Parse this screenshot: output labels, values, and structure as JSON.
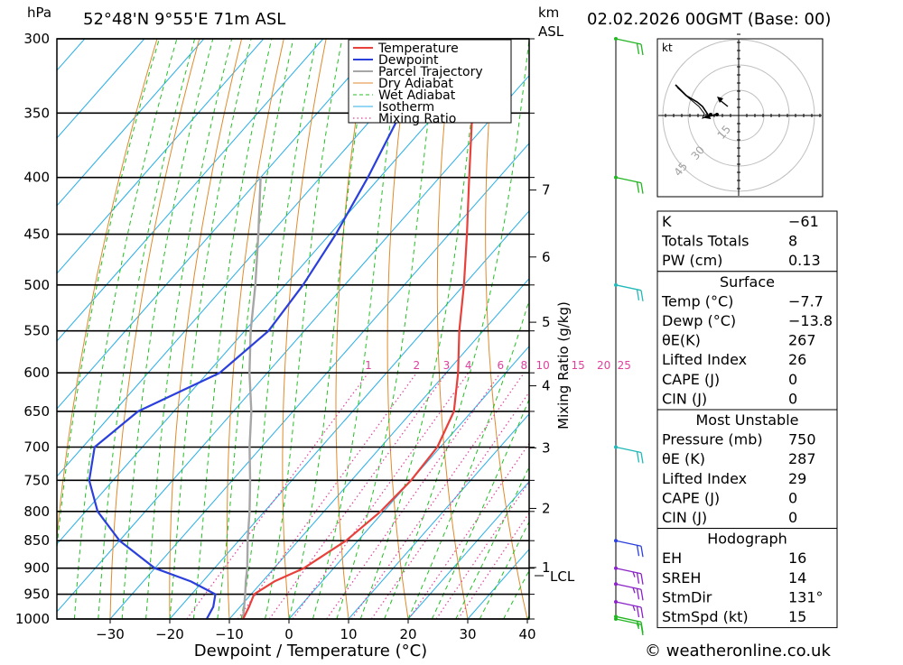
{
  "header": {
    "pressure_unit": "hPa",
    "location": "52°48'N  9°55'E  71m  ASL",
    "height_unit_top": "km",
    "height_unit_bottom": "ASL",
    "datetime": "02.02.2026  00GMT  (Base: 00)"
  },
  "footer": {
    "credit": "© weatheronline.co.uk"
  },
  "colors": {
    "temperature": "#e8403a",
    "dewpoint": "#2a3fdc",
    "parcel": "#a6a6a6",
    "dry_adiabat": "#e08a2c",
    "wet_adiabat": "#22c022",
    "isotherm": "#28aee8",
    "mixing_ratio": "#e0409c",
    "barb_green": "#22b522",
    "barb_cyan": "#20b8b8",
    "barb_blue": "#2a3fdc",
    "barb_purple": "#8a22c8"
  },
  "chart_data": {
    "type": "line",
    "xlabel": "Dewpoint / Temperature (°C)",
    "ylabel": "hPa",
    "xlim": [
      -40,
      40
    ],
    "ylim": [
      1000,
      300
    ],
    "x_ticks": [
      "-30",
      "-20",
      "-10",
      "0",
      "10",
      "20",
      "30",
      "40"
    ],
    "y_ticks": [
      "300",
      "350",
      "400",
      "450",
      "500",
      "550",
      "600",
      "650",
      "700",
      "750",
      "800",
      "850",
      "900",
      "950",
      "1000"
    ],
    "km_ticks": [
      "1",
      "2",
      "3",
      "4",
      "5",
      "6",
      "7"
    ],
    "lcl_label": "LCL",
    "mixing_ratio_label": "Mixing Ratio (g/kg)",
    "mixing_ratio_values": [
      "1",
      "2",
      "3",
      "4",
      "6",
      "8",
      "10",
      "15",
      "20",
      "25"
    ],
    "legend": [
      "Temperature",
      "Dewpoint",
      "Parcel Trajectory",
      "Dry Adiabat",
      "Wet Adiabat",
      "Isotherm",
      "Mixing Ratio"
    ],
    "series": [
      {
        "name": "Temperature",
        "points": [
          [
            1000,
            -7.7
          ],
          [
            975,
            -8.5
          ],
          [
            950,
            -9.5
          ],
          [
            925,
            -8
          ],
          [
            900,
            -5
          ],
          [
            850,
            -2
          ],
          [
            800,
            -0.5
          ],
          [
            750,
            0
          ],
          [
            700,
            -0.5
          ],
          [
            650,
            -3
          ],
          [
            600,
            -8
          ],
          [
            550,
            -14
          ],
          [
            500,
            -20
          ],
          [
            450,
            -27
          ],
          [
            400,
            -35
          ],
          [
            350,
            -44
          ],
          [
            300,
            -53
          ]
        ]
      },
      {
        "name": "Dewpoint",
        "points": [
          [
            1000,
            -13.8
          ],
          [
            975,
            -14.5
          ],
          [
            950,
            -16
          ],
          [
            925,
            -22
          ],
          [
            900,
            -30
          ],
          [
            850,
            -40
          ],
          [
            800,
            -48
          ],
          [
            750,
            -54
          ],
          [
            700,
            -58
          ],
          [
            650,
            -56
          ],
          [
            600,
            -48
          ],
          [
            550,
            -46
          ],
          [
            500,
            -47
          ],
          [
            450,
            -49
          ],
          [
            400,
            -52
          ],
          [
            350,
            -56
          ],
          [
            300,
            -60
          ]
        ]
      },
      {
        "name": "Parcel Trajectory",
        "points": [
          [
            1000,
            -7.7
          ],
          [
            950,
            -11
          ],
          [
            925,
            -12.8
          ],
          [
            900,
            -14.5
          ],
          [
            850,
            -18.5
          ],
          [
            800,
            -22.5
          ],
          [
            750,
            -27
          ],
          [
            700,
            -32
          ],
          [
            650,
            -37
          ],
          [
            600,
            -43
          ],
          [
            550,
            -49
          ],
          [
            500,
            -55
          ],
          [
            450,
            -62
          ],
          [
            400,
            -70
          ]
        ]
      }
    ],
    "wind_barbs": [
      {
        "pressure": 1000,
        "speed_kt": 15,
        "color": "barb_green"
      },
      {
        "pressure": 995,
        "speed_kt": 15,
        "color": "barb_green"
      },
      {
        "pressure": 965,
        "speed_kt": 25,
        "color": "barb_purple"
      },
      {
        "pressure": 930,
        "speed_kt": 25,
        "color": "barb_purple"
      },
      {
        "pressure": 900,
        "speed_kt": 25,
        "color": "barb_purple"
      },
      {
        "pressure": 850,
        "speed_kt": 20,
        "color": "barb_blue"
      },
      {
        "pressure": 700,
        "speed_kt": 20,
        "color": "barb_cyan"
      },
      {
        "pressure": 500,
        "speed_kt": 20,
        "color": "barb_cyan"
      },
      {
        "pressure": 400,
        "speed_kt": 20,
        "color": "barb_green"
      },
      {
        "pressure": 300,
        "speed_kt": 20,
        "color": "barb_green"
      }
    ]
  },
  "hodograph": {
    "unit_label": "kt",
    "ring_labels": [
      "15",
      "30",
      "45"
    ]
  },
  "table": {
    "top": [
      {
        "label": "K",
        "value": "-61"
      },
      {
        "label": "Totals Totals",
        "value": "8"
      },
      {
        "label": "PW (cm)",
        "value": "0.13"
      }
    ],
    "surface": {
      "title": "Surface",
      "rows": [
        {
          "label": "Temp (°C)",
          "value": "-7.7"
        },
        {
          "label": "Dewp (°C)",
          "value": "-13.8"
        },
        {
          "label": "θE(K)",
          "value": "267"
        },
        {
          "label": "Lifted Index",
          "value": "26"
        },
        {
          "label": "CAPE (J)",
          "value": "0"
        },
        {
          "label": "CIN (J)",
          "value": "0"
        }
      ]
    },
    "most_unstable": {
      "title": "Most Unstable",
      "rows": [
        {
          "label": "Pressure (mb)",
          "value": "750"
        },
        {
          "label": "θE (K)",
          "value": "287"
        },
        {
          "label": "Lifted Index",
          "value": "29"
        },
        {
          "label": "CAPE (J)",
          "value": "0"
        },
        {
          "label": "CIN (J)",
          "value": "0"
        }
      ]
    },
    "hodograph_section": {
      "title": "Hodograph",
      "rows": [
        {
          "label": "EH",
          "value": "16"
        },
        {
          "label": "SREH",
          "value": "14"
        },
        {
          "label": "StmDir",
          "value": "131°"
        },
        {
          "label": "StmSpd (kt)",
          "value": "15"
        }
      ]
    }
  }
}
